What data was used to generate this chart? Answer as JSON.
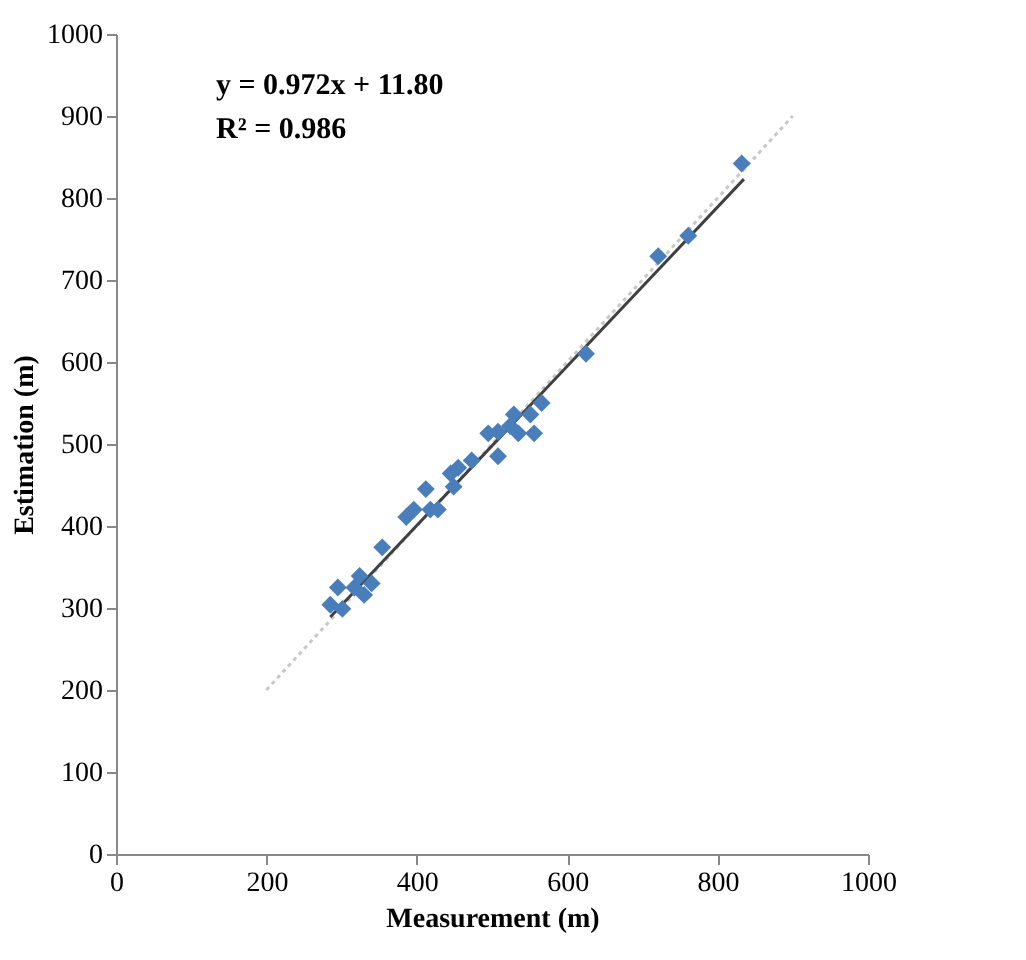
{
  "chart_data": {
    "type": "scatter",
    "xlabel": "Measurement (m)",
    "ylabel": "Estimation (m)",
    "annotations": [
      "y = 0.972x + 11.80",
      "R² = 0.986"
    ],
    "xlim": [
      0,
      1000
    ],
    "xticks": [
      0,
      200,
      400,
      600,
      800,
      1000
    ],
    "ylim": [
      0,
      1000
    ],
    "yticks": [
      0,
      100,
      200,
      300,
      400,
      500,
      600,
      700,
      800,
      900,
      1000
    ],
    "grid": false,
    "marker": "diamond",
    "series": [
      {
        "type": "line",
        "color": "#c8c8c8",
        "line_style": "dotted",
        "marker": "none",
        "x": [
          200,
          900
        ],
        "values": [
          200,
          900
        ]
      },
      {
        "type": "line",
        "color": "#404040",
        "line_style": "solid",
        "marker": "none",
        "x": [
          285,
          835
        ],
        "values": [
          289,
          823
        ]
      },
      {
        "color": "#4a7ebb",
        "x": [
          832,
          761,
          721,
          625,
          566,
          551,
          529,
          524,
          535,
          556,
          508,
          495,
          508,
          473,
          455,
          445,
          449,
          412,
          418,
          428,
          396,
          386,
          354,
          324,
          330,
          317,
          295,
          285,
          301,
          340
        ],
        "values": [
          842,
          754,
          729,
          610,
          550,
          536,
          536,
          522,
          513,
          513,
          515,
          513,
          485,
          480,
          471,
          464,
          448,
          445,
          420,
          420,
          420,
          411,
          374,
          339,
          316,
          325,
          325,
          304,
          299,
          330
        ]
      }
    ]
  }
}
